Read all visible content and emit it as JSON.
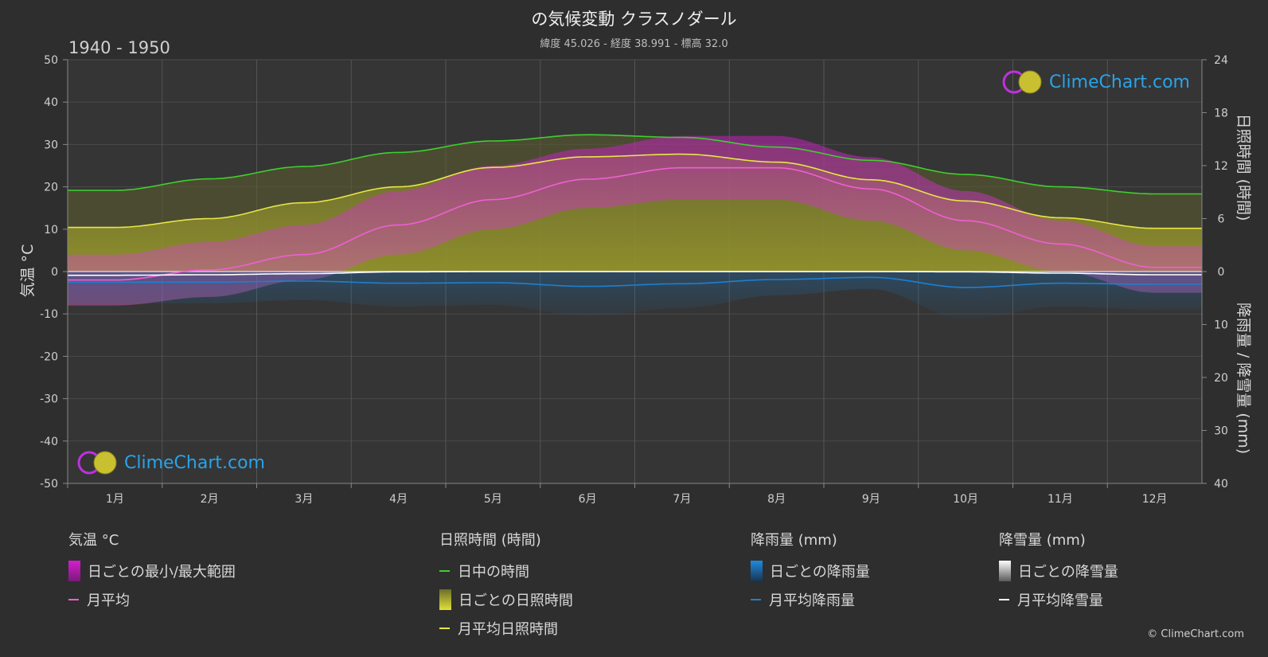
{
  "header": {
    "title": "の気候変動 クラスノダール",
    "subtitle": "緯度 45.026 - 経度 38.991 - 標高 32.0",
    "period": "1940 - 1950"
  },
  "brand": {
    "logo_text": "ClimeChart.com",
    "copyright": "© ClimeChart.com"
  },
  "chart_data": {
    "type": "line",
    "categories": [
      "1月",
      "2月",
      "3月",
      "4月",
      "5月",
      "6月",
      "7月",
      "8月",
      "9月",
      "10月",
      "11月",
      "12月"
    ],
    "y_left": {
      "label": "気温 °C",
      "range": [
        -50,
        50
      ],
      "ticks": [
        50,
        40,
        30,
        20,
        10,
        0,
        -10,
        -20,
        -30,
        -40,
        -50
      ]
    },
    "y_right_top": {
      "label": "日照時間 (時間)",
      "range": [
        0,
        24
      ],
      "ticks": [
        24,
        18,
        12,
        6,
        0
      ]
    },
    "y_right_bottom": {
      "label": "降雨量 / 降雪量 (mm)",
      "range": [
        0,
        40
      ],
      "ticks": [
        0,
        10,
        20,
        30,
        40
      ]
    },
    "grid": true,
    "series": [
      {
        "name": "日中の時間",
        "axis": "sunshine",
        "color": "#3ecf2e",
        "values": [
          9.2,
          10.5,
          11.9,
          13.5,
          14.8,
          15.5,
          15.2,
          14.1,
          12.6,
          11.0,
          9.6,
          8.8
        ]
      },
      {
        "name": "月平均日照時間",
        "axis": "sunshine",
        "color": "#e6e645",
        "values": [
          5.0,
          6.0,
          7.8,
          9.6,
          11.8,
          13.0,
          13.3,
          12.4,
          10.4,
          8.0,
          6.1,
          4.9
        ]
      },
      {
        "name": "月平均",
        "axis": "temperature",
        "color": "#ee5fd2",
        "values": [
          -2.0,
          0.4,
          4.0,
          11.0,
          17.0,
          21.8,
          24.5,
          24.5,
          19.5,
          12.0,
          6.5,
          1.0
        ]
      },
      {
        "name": "日ごとの最小/最大範囲",
        "axis": "temperature",
        "color": "#d020c8",
        "min": [
          -8,
          -6,
          -2,
          4,
          10,
          15,
          17,
          17,
          12,
          5,
          0,
          -5
        ],
        "max": [
          4,
          7,
          11,
          19,
          25,
          29,
          32,
          32,
          27,
          19,
          12,
          6
        ]
      },
      {
        "name": "月平均降雨量",
        "axis": "precipitation",
        "color": "#1e7fd0",
        "values": [
          2.0,
          2.0,
          1.8,
          2.2,
          2.1,
          2.8,
          2.3,
          1.5,
          1.1,
          3.0,
          2.2,
          2.4
        ]
      },
      {
        "name": "月平均降雪量",
        "axis": "precipitation",
        "color": "#ffffff",
        "values": [
          0.7,
          0.6,
          0.4,
          0.05,
          0,
          0,
          0,
          0,
          0,
          0.05,
          0.3,
          0.6
        ]
      }
    ]
  },
  "legend": {
    "groups": [
      {
        "title": "気温 °C",
        "items": [
          {
            "label": "日ごとの最小/最大範囲",
            "kind": "box",
            "color": "#d51ecf"
          },
          {
            "label": "月平均",
            "kind": "line",
            "color": "#ee5fd2"
          }
        ]
      },
      {
        "title": "日照時間 (時間)",
        "items": [
          {
            "label": "日中の時間",
            "kind": "line",
            "color": "#3ecf2e"
          },
          {
            "label": "日ごとの日照時間",
            "kind": "box",
            "color": "#c9c93a"
          },
          {
            "label": "月平均日照時間",
            "kind": "line",
            "color": "#e6e645"
          }
        ]
      },
      {
        "title": "降雨量 (mm)",
        "items": [
          {
            "label": "日ごとの降雨量",
            "kind": "box",
            "color": "#1e7fd0"
          },
          {
            "label": "月平均降雨量",
            "kind": "line",
            "color": "#1e7fd0"
          }
        ]
      },
      {
        "title": "降雪量 (mm)",
        "items": [
          {
            "label": "日ごとの降雪量",
            "kind": "box",
            "color": "#e8e8e8"
          },
          {
            "label": "月平均降雪量",
            "kind": "line",
            "color": "#ffffff"
          }
        ]
      }
    ]
  }
}
